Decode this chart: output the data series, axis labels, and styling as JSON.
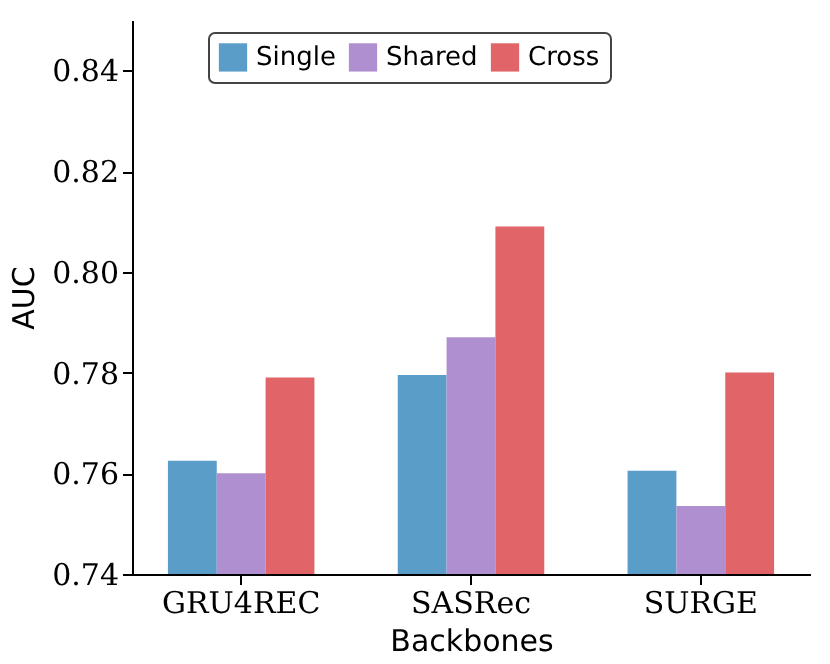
{
  "chart_data": {
    "type": "bar",
    "xlabel": "Backbones",
    "ylabel": "AUC",
    "categories": [
      "GRU4REC",
      "SASRec",
      "SURGE"
    ],
    "series": [
      {
        "name": "Single",
        "color": "#5b9dc9",
        "values": [
          0.7625,
          0.7795,
          0.7605
        ]
      },
      {
        "name": "Shared",
        "color": "#b08fd0",
        "values": [
          0.76,
          0.787,
          0.7535
        ]
      },
      {
        "name": "Cross",
        "color": "#e06468",
        "values": [
          0.779,
          0.809,
          0.78
        ]
      }
    ],
    "ylim": [
      0.74,
      0.85
    ],
    "yticks": [
      0.74,
      0.76,
      0.78,
      {
        "value": 0.8,
        "label": "0.80"
      },
      0.82,
      0.84
    ],
    "grid": false,
    "legend": "top"
  }
}
